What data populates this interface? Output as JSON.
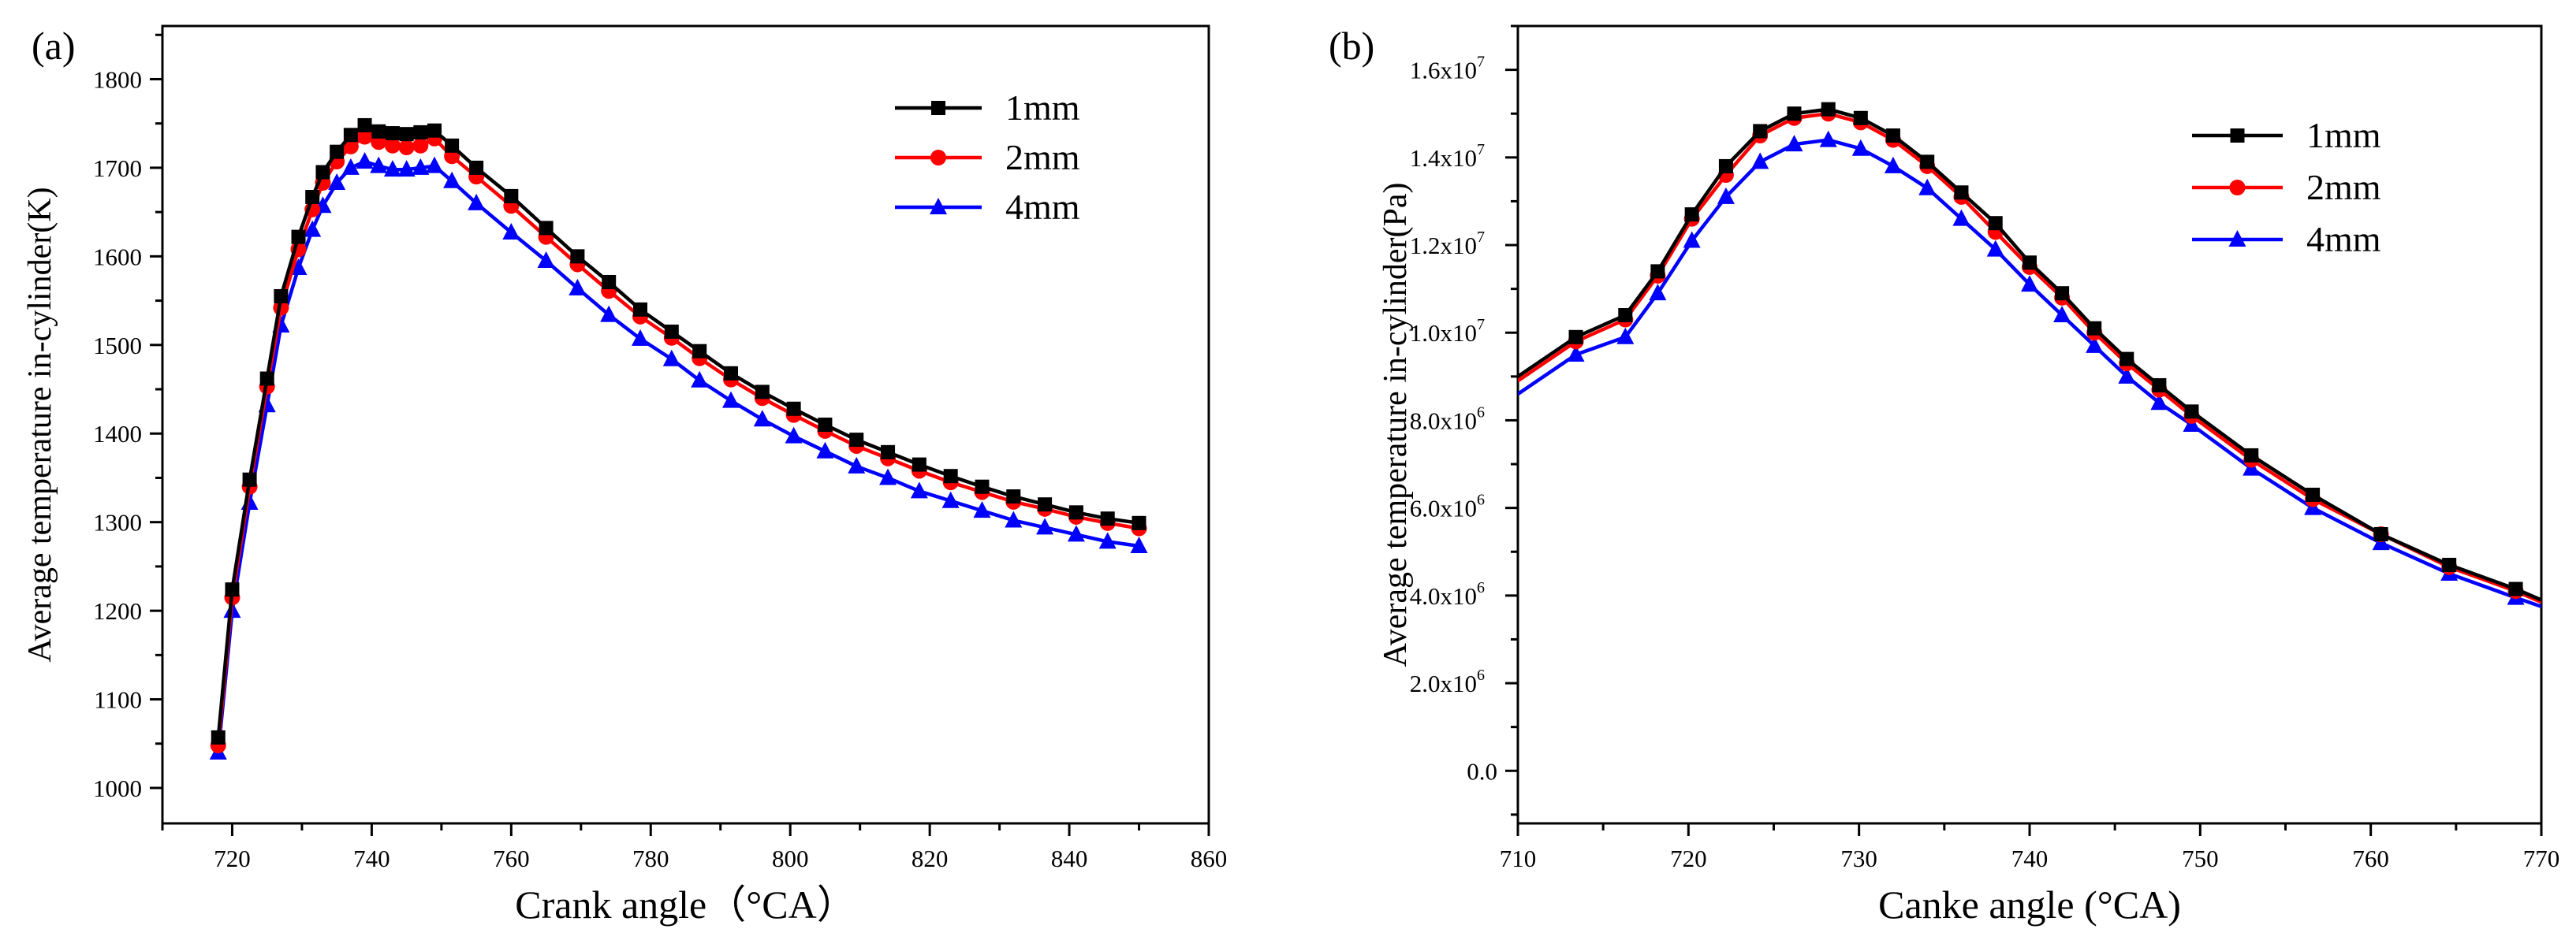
{
  "chart_data": [
    {
      "type": "line",
      "panel_label": "(a)",
      "xlabel": "Crank angle（°CA）",
      "ylabel": "Average temperature in-cylinder(K)",
      "xlim": [
        710,
        860
      ],
      "ylim": [
        960,
        1860
      ],
      "xticks": [
        720,
        740,
        760,
        780,
        800,
        820,
        840,
        860
      ],
      "yticks": [
        1000,
        1100,
        1200,
        1300,
        1400,
        1500,
        1600,
        1700,
        1800
      ],
      "xtick_labels": [
        "720",
        "740",
        "760",
        "780",
        "800",
        "820",
        "840",
        "860"
      ],
      "ytick_labels": [
        "1000",
        "1100",
        "1200",
        "1300",
        "1400",
        "1500",
        "1600",
        "1700",
        "1800"
      ],
      "legend_position": "top-right",
      "series": [
        {
          "name": "1mm",
          "color": "#000000",
          "marker": "square",
          "x": [
            718,
            720,
            722.5,
            725,
            727,
            729.5,
            731.5,
            733,
            735,
            737,
            739,
            741,
            743,
            745,
            747,
            749,
            751.5,
            755,
            760,
            765,
            769.5,
            774,
            778.5,
            783,
            787,
            791.5,
            796,
            800.5,
            805,
            809.5,
            814,
            818.5,
            823,
            827.5,
            832,
            836.5,
            841,
            845.5,
            850
          ],
          "y": [
            1057,
            1224,
            1348,
            1462,
            1555,
            1622,
            1667,
            1695,
            1718,
            1737,
            1748,
            1741,
            1739,
            1738,
            1740,
            1742,
            1725,
            1700,
            1668,
            1632,
            1600,
            1571,
            1540,
            1515,
            1493,
            1468,
            1447,
            1428,
            1410,
            1393,
            1379,
            1365,
            1352,
            1340,
            1329,
            1320,
            1311,
            1304,
            1299
          ]
        },
        {
          "name": "2mm",
          "color": "#ff0000",
          "marker": "circle",
          "x": [
            718,
            720,
            722.5,
            725,
            727,
            729.5,
            731.5,
            733,
            735,
            737,
            739,
            741,
            743,
            745,
            747,
            749,
            751.5,
            755,
            760,
            765,
            769.5,
            774,
            778.5,
            783,
            787,
            791.5,
            796,
            800.5,
            805,
            809.5,
            814,
            818.5,
            823,
            827.5,
            832,
            836.5,
            841,
            845.5,
            850
          ],
          "y": [
            1048,
            1215,
            1340,
            1453,
            1542,
            1608,
            1653,
            1683,
            1707,
            1724,
            1735,
            1729,
            1725,
            1723,
            1725,
            1733,
            1713,
            1690,
            1657,
            1622,
            1591,
            1561,
            1532,
            1508,
            1485,
            1461,
            1440,
            1421,
            1403,
            1386,
            1372,
            1358,
            1345,
            1334,
            1323,
            1315,
            1306,
            1299,
            1293
          ]
        },
        {
          "name": "4mm",
          "color": "#0000ff",
          "marker": "triangle",
          "x": [
            718,
            720,
            722.5,
            725,
            727,
            729.5,
            731.5,
            733,
            735,
            737,
            739,
            741,
            743,
            745,
            747,
            749,
            751.5,
            755,
            760,
            765,
            769.5,
            774,
            778.5,
            783,
            787,
            791.5,
            796,
            800.5,
            805,
            809.5,
            814,
            818.5,
            823,
            827.5,
            832,
            836.5,
            841,
            845.5,
            850
          ],
          "y": [
            1040,
            1200,
            1322,
            1432,
            1522,
            1587,
            1630,
            1657,
            1683,
            1700,
            1707,
            1702,
            1698,
            1698,
            1700,
            1702,
            1685,
            1660,
            1627,
            1595,
            1564,
            1534,
            1507,
            1484,
            1460,
            1437,
            1416,
            1397,
            1380,
            1363,
            1350,
            1335,
            1324,
            1313,
            1302,
            1294,
            1286,
            1278,
            1273
          ]
        }
      ]
    },
    {
      "type": "line",
      "panel_label": "(b)",
      "xlabel": "Canke angle (°CA)",
      "ylabel": "Average temperature in-cylinder(Pa)",
      "xlim": [
        710,
        770
      ],
      "ylim": [
        -1200000,
        17000000
      ],
      "xticks": [
        710,
        720,
        730,
        740,
        750,
        760,
        770
      ],
      "yticks": [
        0,
        2000000,
        4000000,
        6000000,
        8000000,
        10000000,
        12000000,
        14000000,
        16000000
      ],
      "xtick_labels": [
        "710",
        "720",
        "730",
        "740",
        "750",
        "760",
        "770"
      ],
      "ytick_labels": [
        "0.0",
        "2.0x10",
        "4.0x10",
        "6.0x10",
        "8.0x10",
        "1.0x10",
        "1.2x10",
        "1.4x10",
        "1.6x10"
      ],
      "ytick_exponents": [
        "",
        "6",
        "6",
        "6",
        "6",
        "7",
        "7",
        "7",
        "7"
      ],
      "legend_position": "top-right",
      "series": [
        {
          "name": "1mm",
          "color": "#000000",
          "marker": "square",
          "x": [
            710,
            713.4,
            716.3,
            718.2,
            720.2,
            722.2,
            724.2,
            726.2,
            728.2,
            730.1,
            732,
            734,
            736,
            738,
            740,
            741.9,
            743.8,
            745.7,
            747.6,
            749.5,
            753,
            756.6,
            760.6,
            764.6,
            768.5,
            770
          ],
          "y": [
            9000000,
            9900000,
            10400000,
            11400000,
            12700000,
            13800000,
            14600000,
            15000000,
            15100000,
            14900000,
            14500000,
            13900000,
            13200000,
            12500000,
            11600000,
            10900000,
            10100000,
            9400000,
            8800000,
            8200000,
            7200000,
            6300000,
            5400000,
            4700000,
            4150000,
            3900000
          ]
        },
        {
          "name": "2mm",
          "color": "#ff0000",
          "marker": "circle",
          "x": [
            710,
            713.4,
            716.3,
            718.2,
            720.2,
            722.2,
            724.2,
            726.2,
            728.2,
            730.1,
            732,
            734,
            736,
            738,
            740,
            741.9,
            743.8,
            745.7,
            747.6,
            749.5,
            753,
            756.6,
            760.6,
            764.6,
            768.5,
            770
          ],
          "y": [
            8900000,
            9800000,
            10300000,
            11300000,
            12600000,
            13600000,
            14500000,
            14900000,
            15000000,
            14800000,
            14400000,
            13800000,
            13100000,
            12300000,
            11500000,
            10800000,
            10000000,
            9300000,
            8700000,
            8100000,
            7100000,
            6200000,
            5400000,
            4650000,
            4100000,
            3850000
          ]
        },
        {
          "name": "4mm",
          "color": "#0000ff",
          "marker": "triangle",
          "x": [
            710,
            713.4,
            716.3,
            718.2,
            720.2,
            722.2,
            724.2,
            726.2,
            728.2,
            730.1,
            732,
            734,
            736,
            738,
            740,
            741.9,
            743.8,
            745.7,
            747.6,
            749.5,
            753,
            756.6,
            760.6,
            764.6,
            768.5,
            770
          ],
          "y": [
            8600000,
            9500000,
            9900000,
            10900000,
            12100000,
            13100000,
            13900000,
            14300000,
            14400000,
            14200000,
            13800000,
            13300000,
            12600000,
            11900000,
            11100000,
            10400000,
            9700000,
            9000000,
            8400000,
            7900000,
            6900000,
            6000000,
            5200000,
            4500000,
            3950000,
            3750000
          ]
        }
      ]
    }
  ]
}
